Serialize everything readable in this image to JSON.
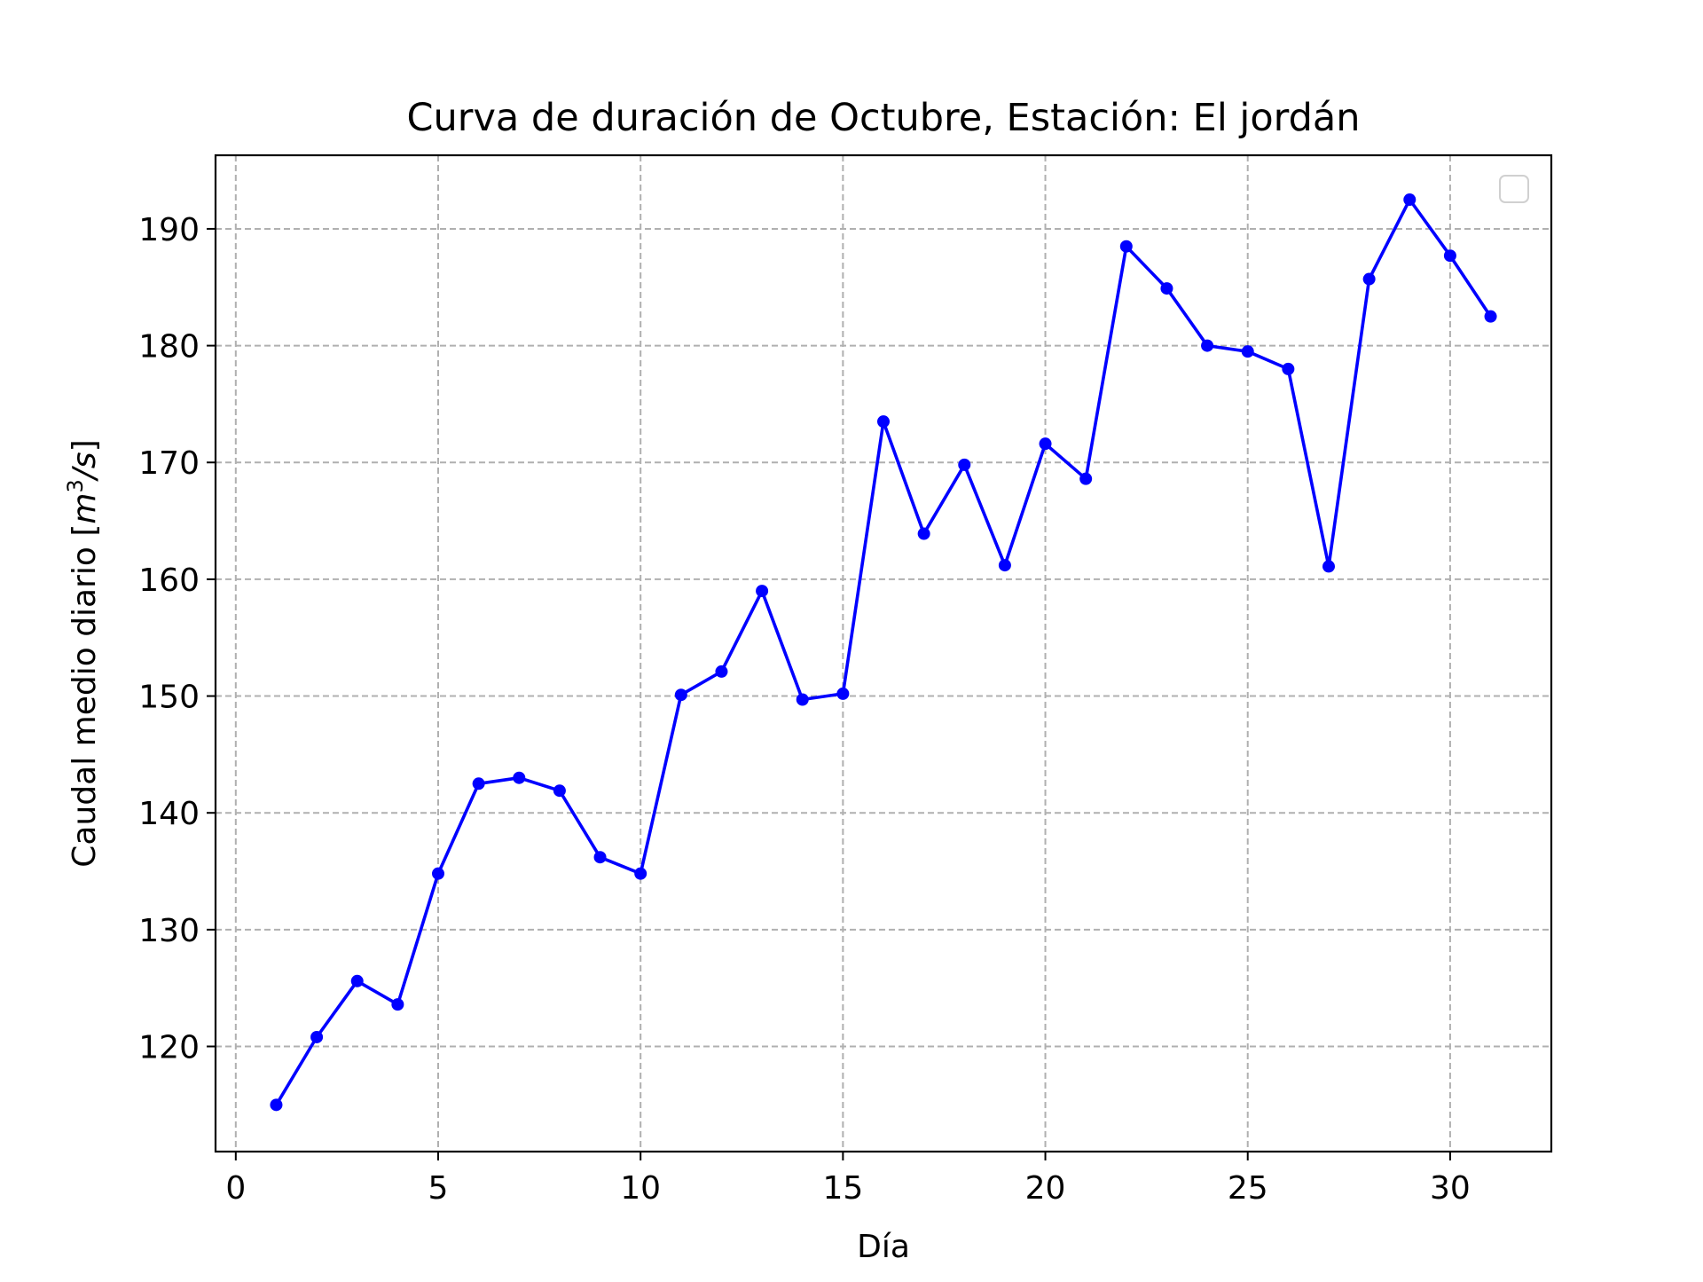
{
  "chart_data": {
    "type": "line",
    "title": "Curva de duración de Octubre, Estación: El jordán",
    "xlabel": "Día",
    "ylabel": "Caudal medio diario [m³/s]",
    "ylabel_parts": {
      "main": "Caudal medio diario [",
      "m": "m",
      "exp": "3",
      "rest": "/s",
      "close": "]"
    },
    "xlim": [
      -0.5,
      32.5
    ],
    "ylim": [
      111,
      196.3
    ],
    "xticks": [
      0,
      5,
      10,
      15,
      20,
      25,
      30
    ],
    "yticks": [
      120,
      130,
      140,
      150,
      160,
      170,
      180,
      190
    ],
    "grid": true,
    "grid_style": "dashed",
    "legend": "top-right, empty",
    "line_color": "#0000ff",
    "series": [
      {
        "x": [
          1,
          2,
          3,
          4,
          5,
          6,
          7,
          8,
          9,
          10,
          11,
          12,
          13,
          14,
          15,
          16,
          17,
          18,
          19,
          20,
          21,
          22,
          23,
          24,
          25,
          26,
          27,
          28,
          29,
          30,
          31
        ],
        "values": [
          115.0,
          120.8,
          125.6,
          123.6,
          134.8,
          142.5,
          143.0,
          141.9,
          136.2,
          134.8,
          150.1,
          152.1,
          159.0,
          149.7,
          150.2,
          173.5,
          163.9,
          169.8,
          161.2,
          171.6,
          168.6,
          188.5,
          184.9,
          180.0,
          179.5,
          178.0,
          161.1,
          185.7,
          192.5,
          187.7,
          182.5
        ]
      }
    ]
  }
}
